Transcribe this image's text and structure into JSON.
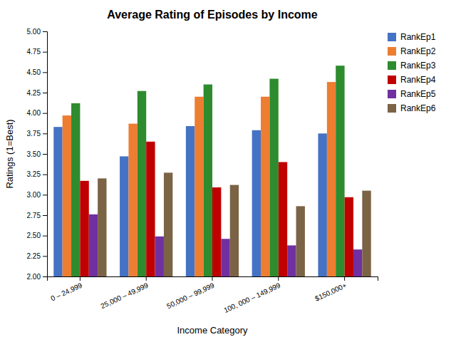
{
  "chart_data": {
    "type": "bar",
    "title": "Average Rating of Episodes by Income",
    "xlabel": "Income Category",
    "ylabel": "Ratings (1=Best)",
    "categories": [
      "0 – 24,999",
      "25,000 – 49,999",
      "50,000 – 99,999",
      "100, 000 – 149,999",
      "$150,000+"
    ],
    "series": [
      {
        "name": "RankEp1",
        "color": "#4472c4",
        "values": [
          3.83,
          3.47,
          3.84,
          3.79,
          3.75
        ]
      },
      {
        "name": "RankEp2",
        "color": "#ed7d31",
        "values": [
          3.97,
          3.87,
          4.2,
          4.2,
          4.38
        ]
      },
      {
        "name": "RankEp3",
        "color": "#2e8b2e",
        "values": [
          4.12,
          4.27,
          4.35,
          4.42,
          4.58
        ]
      },
      {
        "name": "RankEp4",
        "color": "#c00000",
        "values": [
          3.17,
          3.65,
          3.09,
          3.4,
          2.97
        ]
      },
      {
        "name": "RankEp5",
        "color": "#7030a0",
        "values": [
          2.76,
          2.49,
          2.46,
          2.38,
          2.33
        ]
      },
      {
        "name": "RankEp6",
        "color": "#7b6346",
        "values": [
          3.2,
          3.27,
          3.12,
          2.86,
          3.05
        ]
      }
    ],
    "ylim": [
      2.0,
      5.0
    ],
    "yticks": [
      {
        "value": 2.0,
        "label": "2.00"
      },
      {
        "value": 2.25,
        "label": "2.25"
      },
      {
        "value": 2.5,
        "label": "2.50"
      },
      {
        "value": 2.75,
        "label": "2.75"
      },
      {
        "value": 3.0,
        "label": "3.00"
      },
      {
        "value": 3.25,
        "label": "3.25"
      },
      {
        "value": 3.5,
        "label": "3.50"
      },
      {
        "value": 3.75,
        "label": "3.75"
      },
      {
        "value": 4.0,
        "label": "4.00"
      },
      {
        "value": 4.25,
        "label": "4.25"
      },
      {
        "value": 4.5,
        "label": "4.50"
      },
      {
        "value": 4.75,
        "label": "4.75"
      },
      {
        "value": 5.0,
        "label": "5.00"
      }
    ],
    "grid": false,
    "legend": "upper right"
  }
}
